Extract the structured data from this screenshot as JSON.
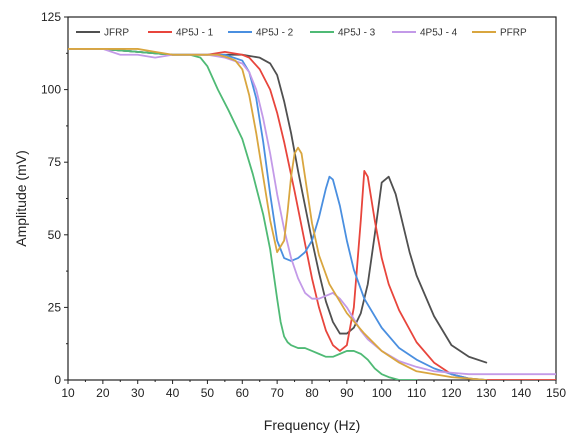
{
  "chart_data": {
    "type": "line",
    "title": "",
    "xlabel": "Frequency (Hz)",
    "ylabel": "Amplitude (mV)",
    "xlim": [
      10,
      150
    ],
    "ylim": [
      0,
      125
    ],
    "x_ticks": [
      10,
      20,
      30,
      40,
      50,
      60,
      70,
      80,
      90,
      100,
      110,
      120,
      130,
      140,
      150
    ],
    "y_ticks": [
      0,
      25,
      50,
      75,
      100,
      125
    ],
    "grid": false,
    "legend_position": "top (horizontal, inside plot)",
    "series": [
      {
        "name": "JFRP",
        "color": "#505050",
        "x": [
          10,
          20,
          30,
          40,
          50,
          55,
          60,
          65,
          68,
          70,
          72,
          74,
          76,
          78,
          80,
          82,
          84,
          86,
          88,
          90,
          92,
          94,
          96,
          98,
          100,
          102,
          104,
          106,
          108,
          110,
          115,
          120,
          125,
          130
        ],
        "y": [
          114,
          114,
          113,
          112,
          112,
          112,
          112,
          111,
          109,
          105,
          96,
          85,
          72,
          60,
          48,
          37,
          27,
          20,
          16,
          16,
          18,
          23,
          33,
          50,
          68,
          70,
          64,
          54,
          44,
          36,
          22,
          12,
          8,
          6
        ]
      },
      {
        "name": "4P5J - 1",
        "color": "#e8453c",
        "x": [
          10,
          20,
          30,
          40,
          50,
          55,
          60,
          62,
          65,
          68,
          70,
          72,
          75,
          78,
          80,
          82,
          84,
          86,
          88,
          90,
          92,
          94,
          95,
          96,
          98,
          100,
          102,
          105,
          110,
          115,
          120,
          125,
          130,
          140,
          150
        ],
        "y": [
          114,
          114,
          113,
          112,
          112,
          113,
          112,
          111,
          107,
          100,
          92,
          82,
          65,
          47,
          35,
          25,
          17,
          12,
          10,
          12,
          25,
          55,
          72,
          70,
          55,
          42,
          33,
          24,
          13,
          6,
          2,
          0.5,
          0,
          0,
          0
        ]
      },
      {
        "name": "4P5J - 2",
        "color": "#4a8fe0",
        "x": [
          10,
          20,
          30,
          40,
          50,
          55,
          60,
          62,
          64,
          66,
          68,
          70,
          72,
          74,
          76,
          78,
          80,
          82,
          84,
          85,
          86,
          88,
          90,
          92,
          95,
          100,
          105,
          110,
          115,
          120,
          125,
          130
        ],
        "y": [
          114,
          114,
          113,
          112,
          112,
          112,
          110,
          106,
          97,
          82,
          64,
          48,
          42,
          41,
          42,
          44,
          48,
          56,
          66,
          70,
          69,
          60,
          48,
          38,
          28,
          18,
          11,
          7,
          4,
          2,
          0.5,
          0
        ]
      },
      {
        "name": "4P5J - 3",
        "color": "#4fba75",
        "x": [
          10,
          20,
          30,
          40,
          45,
          48,
          50,
          53,
          56,
          60,
          63,
          66,
          68,
          70,
          71,
          72,
          73,
          74,
          76,
          78,
          80,
          82,
          84,
          86,
          88,
          90,
          92,
          94,
          96,
          98,
          100,
          102,
          105,
          110
        ],
        "y": [
          114,
          114,
          113,
          112,
          112,
          111,
          108,
          100,
          93,
          83,
          71,
          57,
          45,
          28,
          20,
          15,
          13,
          12,
          11,
          11,
          10,
          9,
          8,
          8,
          9,
          10,
          10,
          9,
          7,
          4,
          2,
          1,
          0,
          0
        ]
      },
      {
        "name": "4P5J - 4",
        "color": "#c39ae8",
        "x": [
          10,
          20,
          25,
          30,
          35,
          40,
          45,
          50,
          55,
          60,
          62,
          64,
          66,
          68,
          70,
          72,
          74,
          76,
          78,
          80,
          82,
          84,
          86,
          88,
          90,
          92,
          94,
          96,
          100,
          105,
          110,
          115,
          120,
          125,
          130,
          140,
          150
        ],
        "y": [
          114,
          114,
          112,
          112,
          111,
          112,
          112,
          112,
          111,
          109,
          106,
          100,
          90,
          78,
          64,
          52,
          42,
          35,
          30,
          28,
          28,
          29,
          30,
          28,
          25,
          21,
          17,
          14,
          10,
          6.5,
          4.5,
          3,
          2.5,
          2,
          2,
          2,
          2
        ]
      },
      {
        "name": "PFRP",
        "color": "#d9a63f",
        "x": [
          10,
          20,
          25,
          30,
          35,
          40,
          45,
          50,
          53,
          56,
          58,
          60,
          62,
          64,
          66,
          68,
          70,
          72,
          73,
          74,
          75,
          76,
          77,
          78,
          80,
          82,
          85,
          90,
          95,
          100,
          105,
          110,
          120,
          130
        ],
        "y": [
          114,
          114,
          114,
          114,
          113,
          112,
          112,
          112,
          112,
          111,
          110,
          107,
          98,
          85,
          70,
          55,
          44,
          48,
          58,
          70,
          78,
          80,
          78,
          70,
          54,
          43,
          33,
          23,
          16,
          10,
          6,
          3,
          1,
          0
        ]
      }
    ]
  }
}
